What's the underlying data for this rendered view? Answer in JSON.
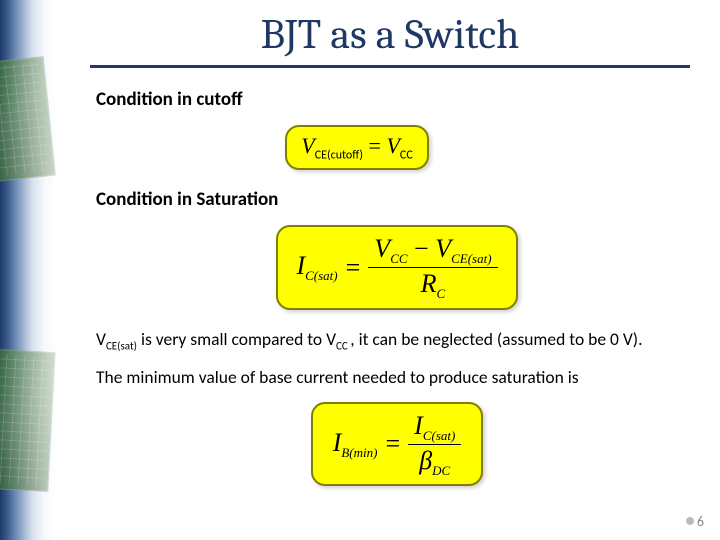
{
  "slide": {
    "title": "BJT as a Switch",
    "title_color": "#1f3864",
    "title_fontsize": 42,
    "underline_color": "#1f3864"
  },
  "left_decor": {
    "gradient_from": "#1a3a6a",
    "gradient_to": "#ffffff",
    "pcb_color": "#3a6a3a"
  },
  "sections": {
    "cutoff": {
      "heading": "Condition in cutoff",
      "formula": {
        "lhs_symbol": "V",
        "lhs_sub": "CE(cutoff)",
        "eq": " = ",
        "rhs_symbol": "V",
        "rhs_sub": "CC"
      }
    },
    "saturation": {
      "heading": "Condition in Saturation",
      "formula": {
        "lhs_symbol": "I",
        "lhs_sub": "C(sat)",
        "eq": " = ",
        "num_left_symbol": "V",
        "num_left_sub": "CC",
        "minus": " − ",
        "num_right_symbol": "V",
        "num_right_sub": "CE(sat)",
        "den_symbol": "R",
        "den_sub": "C"
      }
    },
    "para1": {
      "p1": "V",
      "p1_sub": "CE(sat)",
      "p2": " is very small compared to V",
      "p2_sub": "CC ",
      "p3": ", it can be neglected (assumed to be 0 V)."
    },
    "para2": "The minimum value of base current needed to produce saturation is",
    "ibmin_formula": {
      "lhs_symbol": "I",
      "lhs_sub": "B(min)",
      "eq": " = ",
      "num_symbol": "I",
      "num_sub": "C(sat)",
      "den_symbol": "β",
      "den_sub": "DC"
    }
  },
  "style": {
    "highlight_bg": "#ffff00",
    "highlight_border": "#7f7f00",
    "body_fontsize": 17.5,
    "heading_fontsize": 19,
    "eq_fontsize": 22
  },
  "page": {
    "number": "6"
  }
}
